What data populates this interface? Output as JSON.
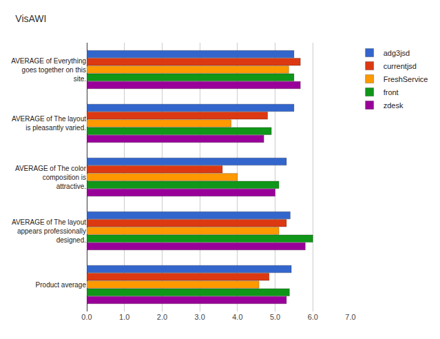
{
  "chart_data": {
    "type": "bar",
    "orientation": "horizontal",
    "title": "VisAWI",
    "categories": [
      "AVERAGE of Everything goes together on this site.",
      "AVERAGE of The layout is pleasantly varied.",
      "AVERAGE of The color composition is attractive.",
      "AVERAGE of The layout appears professionally designed.",
      "Product average"
    ],
    "series": [
      {
        "name": "adg3jsd",
        "color": "#3366cc",
        "values": [
          5.5,
          5.5,
          5.3,
          5.4,
          5.43
        ]
      },
      {
        "name": "currentjsd",
        "color": "#dc3912",
        "values": [
          5.67,
          4.8,
          3.6,
          5.3,
          4.84
        ]
      },
      {
        "name": "FreshService",
        "color": "#ff9900",
        "values": [
          5.36,
          3.83,
          4.0,
          5.1,
          4.57
        ]
      },
      {
        "name": "front",
        "color": "#109618",
        "values": [
          5.5,
          4.9,
          5.1,
          6.0,
          5.38
        ]
      },
      {
        "name": "zdesk",
        "color": "#990099",
        "values": [
          5.67,
          4.7,
          5.0,
          5.8,
          5.3
        ]
      }
    ],
    "xlim": [
      0,
      7
    ],
    "xticks": [
      {
        "value": 0,
        "label": "0.0"
      },
      {
        "value": 1,
        "label": "1.0"
      },
      {
        "value": 2,
        "label": "2.0"
      },
      {
        "value": 3,
        "label": "3.0"
      },
      {
        "value": 4,
        "label": "4.0"
      },
      {
        "value": 5,
        "label": "5.0"
      },
      {
        "value": 6,
        "label": "6.0"
      },
      {
        "value": 7,
        "label": "7.0"
      }
    ],
    "grid": true,
    "legend": "top right"
  }
}
